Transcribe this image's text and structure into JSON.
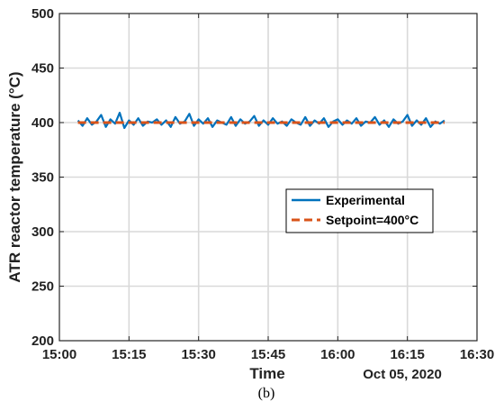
{
  "chart_data": {
    "type": "line",
    "ylabel": "ATR reactor temperature (°C)",
    "xlabel": "Time",
    "date_label": "Oct 05, 2020",
    "panel_label": "(b)",
    "xlim": [
      "15:00",
      "16:30"
    ],
    "ylim": [
      200,
      500
    ],
    "x_ticks": [
      "15:00",
      "15:15",
      "15:30",
      "15:45",
      "16:00",
      "16:15",
      "16:30"
    ],
    "y_ticks": [
      200,
      250,
      300,
      350,
      400,
      450,
      500
    ],
    "grid": true,
    "legend_position": "center-right",
    "series": [
      {
        "name": "Experimental",
        "color": "#0072BD",
        "style": "solid",
        "x": [
          "15:04",
          "15:05",
          "15:06",
          "15:07",
          "15:08",
          "15:09",
          "15:10",
          "15:11",
          "15:12",
          "15:13",
          "15:14",
          "15:15",
          "15:16",
          "15:17",
          "15:18",
          "15:19",
          "15:20",
          "15:21",
          "15:22",
          "15:23",
          "15:24",
          "15:25",
          "15:26",
          "15:27",
          "15:28",
          "15:29",
          "15:30",
          "15:31",
          "15:32",
          "15:33",
          "15:34",
          "15:35",
          "15:36",
          "15:37",
          "15:38",
          "15:39",
          "15:40",
          "15:41",
          "15:42",
          "15:43",
          "15:44",
          "15:45",
          "15:46",
          "15:47",
          "15:48",
          "15:49",
          "15:50",
          "15:51",
          "15:52",
          "15:53",
          "15:54",
          "15:55",
          "15:56",
          "15:57",
          "15:58",
          "15:59",
          "16:00",
          "16:01",
          "16:02",
          "16:03",
          "16:04",
          "16:05",
          "16:06",
          "16:07",
          "16:08",
          "16:09",
          "16:10",
          "16:11",
          "16:12",
          "16:13",
          "16:14",
          "16:15",
          "16:16",
          "16:17",
          "16:18",
          "16:19",
          "16:20",
          "16:21",
          "16:22",
          "16:23"
        ],
        "values": [
          402,
          397,
          404,
          398,
          401,
          407,
          396,
          403,
          399,
          409,
          395,
          402,
          398,
          404,
          397,
          401,
          400,
          403,
          398,
          402,
          396,
          405,
          399,
          401,
          408,
          397,
          403,
          399,
          404,
          396,
          402,
          400,
          398,
          405,
          397,
          403,
          399,
          401,
          406,
          397,
          402,
          398,
          404,
          399,
          401,
          397,
          403,
          400,
          398,
          405,
          397,
          402,
          399,
          404,
          396,
          401,
          403,
          398,
          402,
          399,
          404,
          397,
          401,
          400,
          405,
          398,
          402,
          396,
          403,
          399,
          401,
          407,
          397,
          402,
          398,
          404,
          396,
          401,
          399,
          402
        ]
      },
      {
        "name": "Setpoint=400°C",
        "color": "#D95319",
        "style": "dashed",
        "x": [
          "15:04",
          "16:23"
        ],
        "values": [
          400,
          400
        ]
      }
    ]
  }
}
